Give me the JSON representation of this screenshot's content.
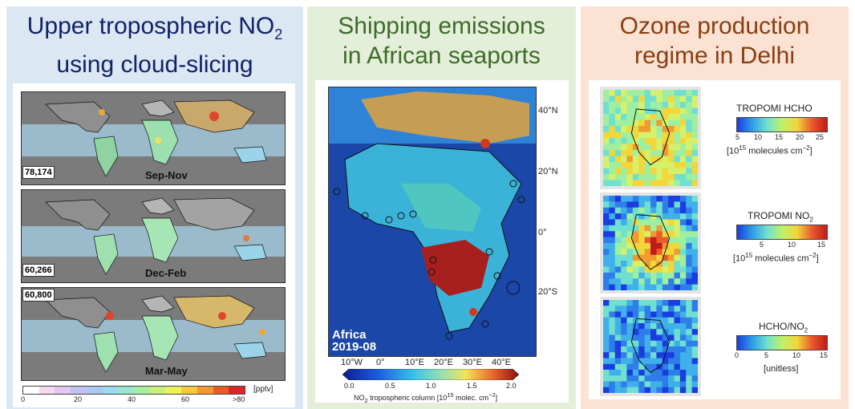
{
  "panels": {
    "left": {
      "title_line1": "Upper tropospheric NO",
      "title_sub": "2",
      "title_line2": "using cloud-slicing",
      "maps": [
        {
          "count": "78,174",
          "season": "Sep-Nov"
        },
        {
          "count": "60,266",
          "season": "Dec-Feb"
        },
        {
          "count": "60,800",
          "season": "Mar-May"
        }
      ],
      "colorbar": {
        "ticks": [
          "0",
          "20",
          "40",
          "60",
          ">80"
        ],
        "unit": "[pptv]",
        "colors": [
          "#ffffff",
          "#f5d9ef",
          "#e2c7ef",
          "#c3c1f2",
          "#aac9f0",
          "#9fd9f0",
          "#9be6cf",
          "#a7ef9e",
          "#c8f07a",
          "#eef05a",
          "#f7c840",
          "#f39834",
          "#ea5b2a",
          "#d8262b"
        ]
      }
    },
    "middle": {
      "title_line1": "Shipping emissions",
      "title_line2": "in African seaports",
      "map_label_1": "Africa",
      "map_label_2": "2019-08",
      "lat_ticks": [
        "40°N",
        "20°N",
        "0°",
        "20°S"
      ],
      "lon_ticks": [
        "10°W",
        "0°",
        "10°E",
        "20°E",
        "30°E",
        "40°E"
      ],
      "colorbar": {
        "ticks": [
          "0.0",
          "0.5",
          "1.0",
          "1.5",
          "2.0"
        ],
        "label": "NO",
        "label_sub": "2",
        "label_rest": " tropospheric column [10",
        "label_sup": "15",
        "label_end": " molec. cm",
        "label_sup2": "−2",
        "label_close": "]"
      }
    },
    "right": {
      "title_line1": "Ozone production",
      "title_line2": "regime in Delhi",
      "maps": [
        {
          "title": "TROPOMI HCHO",
          "ticks": [
            "5",
            "10",
            "15",
            "20",
            "25"
          ],
          "unit_pre": "[10",
          "unit_sup": "15",
          "unit_mid": " molecules cm",
          "unit_sup2": "−2",
          "unit_end": "]"
        },
        {
          "title": "TROPOMI NO",
          "title_sub": "2",
          "ticks": [
            "5",
            "10",
            "15"
          ],
          "unit_pre": "[10",
          "unit_sup": "15",
          "unit_mid": " molecules cm",
          "unit_sup2": "−2",
          "unit_end": "]"
        },
        {
          "title": "HCHO/NO",
          "title_sub": "2",
          "ticks": [
            "0",
            "5",
            "10",
            "15"
          ],
          "unit": "[unitless]"
        }
      ]
    }
  }
}
